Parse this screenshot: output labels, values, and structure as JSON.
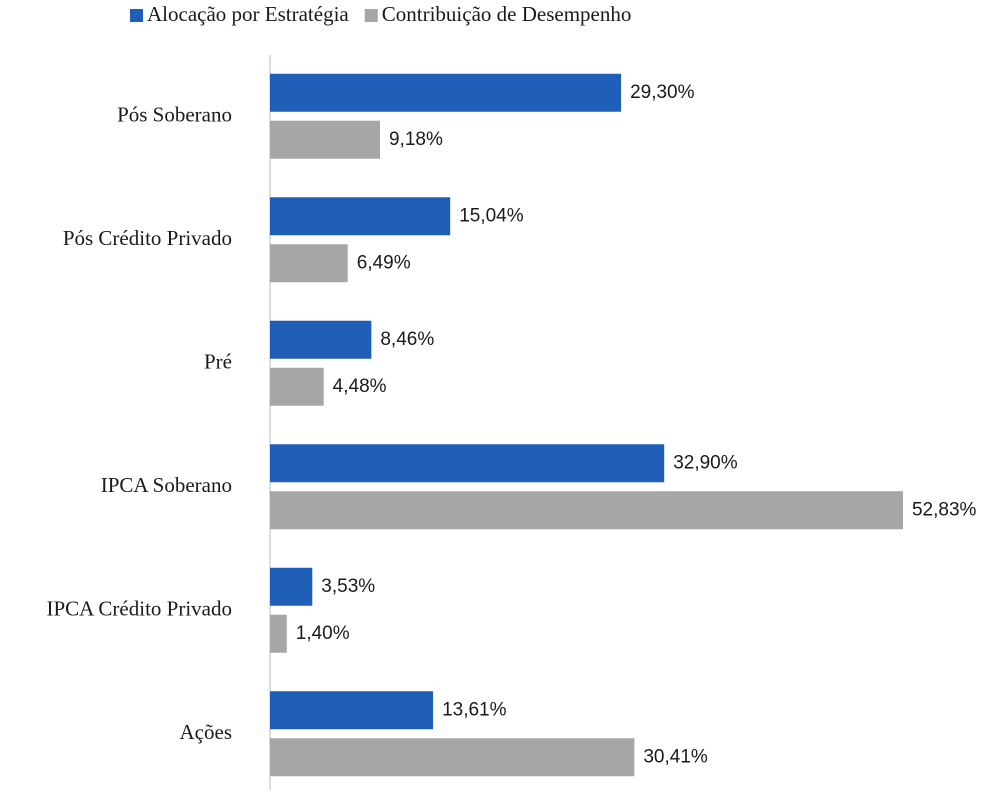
{
  "chart_data": {
    "type": "hbar",
    "categories": [
      "Pós Soberano",
      "Pós Crédito Privado",
      "Pré",
      "IPCA Soberano",
      "IPCA Crédito Privado",
      "Ações"
    ],
    "series": [
      {
        "name": "Alocação por Estratégia",
        "color": "#1f5fb8",
        "values": [
          29.3,
          15.04,
          8.46,
          32.9,
          3.53,
          13.61
        ],
        "value_labels": [
          "29,30%",
          "15,04%",
          "8,46%",
          "32,90%",
          "3,53%",
          "13,61%"
        ]
      },
      {
        "name": "Contribuição de Desempenho",
        "color": "#a6a6a6",
        "values": [
          9.18,
          6.49,
          4.48,
          52.83,
          1.4,
          30.41
        ],
        "value_labels": [
          "9,18%",
          "6,49%",
          "4,48%",
          "52,83%",
          "1,40%",
          "30,41%"
        ]
      }
    ],
    "xlim": [
      0,
      55
    ],
    "legend": "top"
  }
}
